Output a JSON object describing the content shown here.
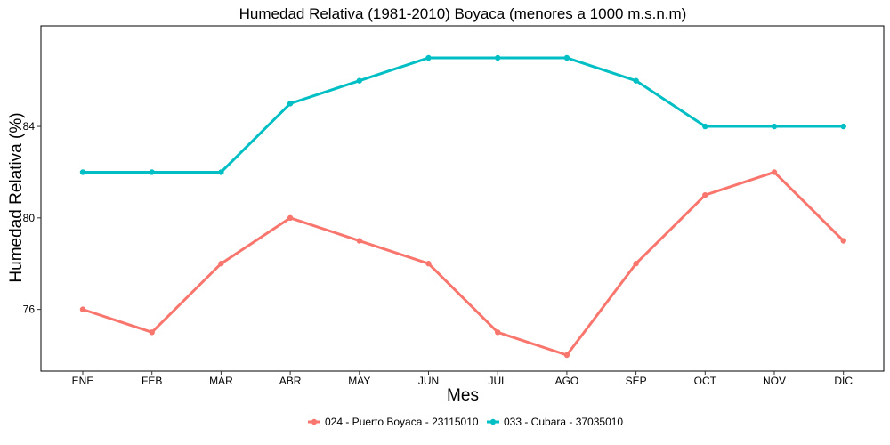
{
  "chart_data": {
    "type": "line",
    "title": "Humedad Relativa (1981-2010) Boyaca (menores a 1000 m.s.n.m)",
    "xlabel": "Mes",
    "ylabel": "Humedad Relativa (%)",
    "categories": [
      "ENE",
      "FEB",
      "MAR",
      "ABR",
      "MAY",
      "JUN",
      "JUL",
      "AGO",
      "SEP",
      "OCT",
      "NOV",
      "DIC"
    ],
    "ylim": [
      73.3,
      88.4
    ],
    "yticks": [
      76,
      80,
      84
    ],
    "grid": false,
    "legend_position": "bottom",
    "series": [
      {
        "name": "024 - Puerto Boyaca - 23115010",
        "color": "#F8766D",
        "values": [
          76,
          75,
          78,
          80,
          79,
          78,
          75,
          74,
          78,
          81,
          82,
          79
        ]
      },
      {
        "name": "033 - Cubara - 37035010",
        "color": "#00BFC4",
        "values": [
          82,
          82,
          82,
          85,
          86,
          87,
          87,
          87,
          86,
          84,
          84,
          84
        ]
      }
    ]
  }
}
